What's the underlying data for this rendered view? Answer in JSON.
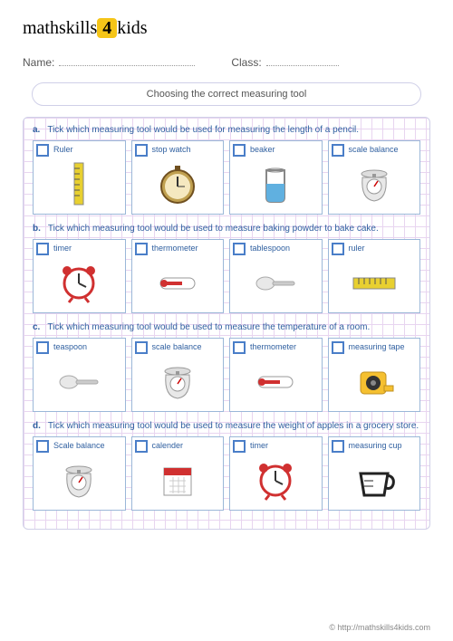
{
  "logo": {
    "part1": "math",
    "part2": "skills",
    "num": "4",
    "part3": "kids"
  },
  "header": {
    "name_label": "Name:",
    "class_label": "Class:"
  },
  "title": "Choosing the correct measuring tool",
  "questions": [
    {
      "letter": "a.",
      "prompt": "Tick which measuring tool would be used for measuring the length of a pencil.",
      "options": [
        {
          "label": "Ruler",
          "icon": "ruler-v"
        },
        {
          "label": "stop watch",
          "icon": "stopwatch"
        },
        {
          "label": "beaker",
          "icon": "beaker"
        },
        {
          "label": "scale balance",
          "icon": "scale"
        }
      ]
    },
    {
      "letter": "b.",
      "prompt": "Tick which measuring tool would be used to measure baking powder to bake cake.",
      "options": [
        {
          "label": "timer",
          "icon": "clock"
        },
        {
          "label": "thermometer",
          "icon": "thermo"
        },
        {
          "label": "tablespoon",
          "icon": "spoon"
        },
        {
          "label": "ruler",
          "icon": "ruler-h"
        }
      ]
    },
    {
      "letter": "c.",
      "prompt": "Tick which measuring tool would be used to measure the temperature of a room.",
      "options": [
        {
          "label": "teaspoon",
          "icon": "spoon"
        },
        {
          "label": "scale balance",
          "icon": "scale"
        },
        {
          "label": "thermometer",
          "icon": "thermo"
        },
        {
          "label": "measuring tape",
          "icon": "tape"
        }
      ]
    },
    {
      "letter": "d.",
      "prompt": "Tick which measuring tool would be used to measure the weight of apples in a grocery store.",
      "options": [
        {
          "label": "Scale balance",
          "icon": "scale"
        },
        {
          "label": "calender",
          "icon": "calendar"
        },
        {
          "label": "timer",
          "icon": "clock"
        },
        {
          "label": "measuring cup",
          "icon": "cup"
        }
      ]
    }
  ],
  "footer": "© http://mathskills4kids.com",
  "colors": {
    "prompt": "#3060a0",
    "border": "#9bb8d8",
    "grid": "#e8d5f0"
  }
}
